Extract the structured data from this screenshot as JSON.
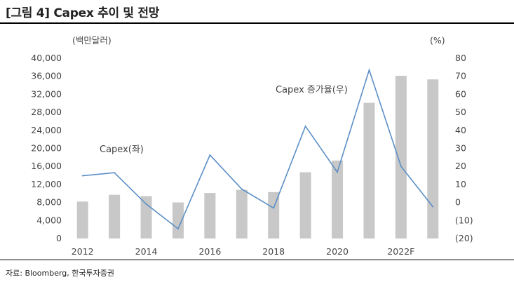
{
  "header": {
    "title": "[그림 4] Capex 추이 및 전망"
  },
  "footer": {
    "source": "자료: Bloomberg, 한국투자증권"
  },
  "chart_data": {
    "type": "bar",
    "ylabel": "(백만달러)",
    "y2label": "(%)",
    "ylim": [
      0,
      40000
    ],
    "y2lim": [
      -20,
      80
    ],
    "y_ticks": [
      "0",
      "4,000",
      "8,000",
      "12,000",
      "16,000",
      "20,000",
      "24,000",
      "28,000",
      "32,000",
      "36,000",
      "40,000"
    ],
    "y2_ticks": [
      "(20)",
      "(10)",
      "0",
      "10",
      "20",
      "30",
      "40",
      "50",
      "60",
      "70",
      "80"
    ],
    "x_tick_labels": [
      "2012",
      "2014",
      "2016",
      "2018",
      "2020",
      "2022F"
    ],
    "categories": [
      "2012",
      "2013",
      "2014",
      "2015",
      "2016",
      "2017",
      "2018",
      "2019",
      "2020",
      "2021",
      "2022F",
      "2023F"
    ],
    "series": [
      {
        "name": "Capex(좌)",
        "type": "bar",
        "axis": "left",
        "color": "#c8c8c8",
        "values": [
          8200,
          9700,
          9400,
          8000,
          10100,
          10800,
          10300,
          14700,
          17300,
          30100,
          36100,
          35300
        ]
      },
      {
        "name": "Capex 증가율(우)",
        "type": "line",
        "axis": "right",
        "color": "#5b8fc7",
        "values": [
          14.8,
          16.5,
          -0.9,
          -14.6,
          26.3,
          7.4,
          -3.1,
          42.3,
          16.8,
          73.5,
          20.0,
          -2.4
        ]
      }
    ],
    "grid": false
  }
}
